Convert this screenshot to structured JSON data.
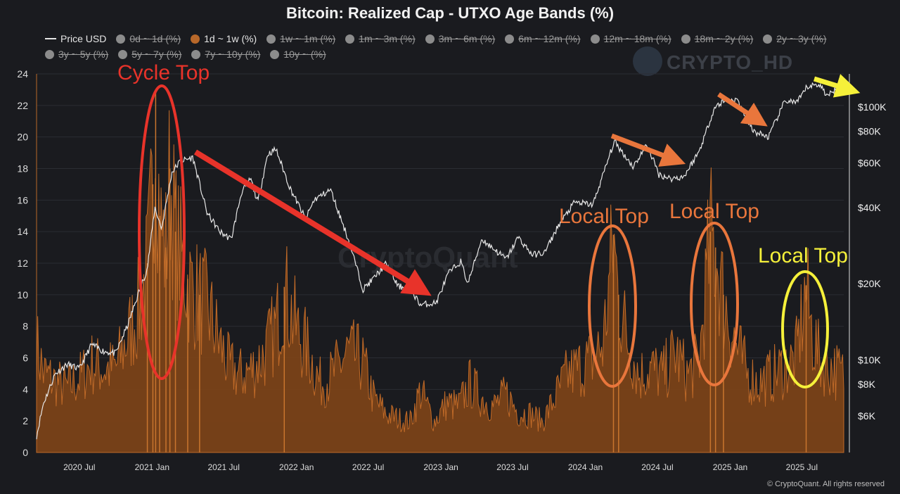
{
  "title": "Bitcoin: Realized Cap - UTXO Age Bands (%)",
  "watermark": "CRYPTO_HD",
  "background_watermark": "CryptoQuant",
  "credit": "© CryptoQuant. All rights reserved",
  "legend": [
    {
      "label": "Price USD",
      "kind": "line",
      "active": true,
      "color": "#e6e6e6"
    },
    {
      "label": "0d ~ 1d (%)",
      "kind": "dot",
      "active": false,
      "color": "#8c8c8c"
    },
    {
      "label": "1d ~ 1w (%)",
      "kind": "dot",
      "active": true,
      "color": "#b8682a"
    },
    {
      "label": "1w ~ 1m (%)",
      "kind": "dot",
      "active": false,
      "color": "#8c8c8c"
    },
    {
      "label": "1m ~ 3m (%)",
      "kind": "dot",
      "active": false,
      "color": "#8c8c8c"
    },
    {
      "label": "3m ~ 6m (%)",
      "kind": "dot",
      "active": false,
      "color": "#8c8c8c"
    },
    {
      "label": "6m ~ 12m (%)",
      "kind": "dot",
      "active": false,
      "color": "#8c8c8c"
    },
    {
      "label": "12m ~ 18m (%)",
      "kind": "dot",
      "active": false,
      "color": "#8c8c8c"
    },
    {
      "label": "18m ~ 2y (%)",
      "kind": "dot",
      "active": false,
      "color": "#8c8c8c"
    },
    {
      "label": "2y ~ 3y (%)",
      "kind": "dot",
      "active": false,
      "color": "#8c8c8c"
    },
    {
      "label": "3y ~ 5y (%)",
      "kind": "dot",
      "active": false,
      "color": "#8c8c8c"
    },
    {
      "label": "5y ~ 7y (%)",
      "kind": "dot",
      "active": false,
      "color": "#8c8c8c"
    },
    {
      "label": "7y ~ 10y (%)",
      "kind": "dot",
      "active": false,
      "color": "#8c8c8c"
    },
    {
      "label": "10y ~ (%)",
      "kind": "dot",
      "active": false,
      "color": "#8c8c8c"
    }
  ],
  "chart_data": {
    "type": "area",
    "x_range": [
      "2020-03-15",
      "2025-10-15"
    ],
    "x_ticks": [
      {
        "label": "2020 Jul",
        "date": "2020-07-01"
      },
      {
        "label": "2021 Jan",
        "date": "2021-01-01"
      },
      {
        "label": "2021 Jul",
        "date": "2021-07-01"
      },
      {
        "label": "2022 Jan",
        "date": "2022-01-01"
      },
      {
        "label": "2022 Jul",
        "date": "2022-07-01"
      },
      {
        "label": "2023 Jan",
        "date": "2023-01-01"
      },
      {
        "label": "2023 Jul",
        "date": "2023-07-01"
      },
      {
        "label": "2024 Jan",
        "date": "2024-01-01"
      },
      {
        "label": "2024 Jul",
        "date": "2024-07-01"
      },
      {
        "label": "2025 Jan",
        "date": "2025-01-01"
      },
      {
        "label": "2025 Jul",
        "date": "2025-07-01"
      }
    ],
    "y_left": {
      "range": [
        0,
        24
      ],
      "ticks": [
        0,
        2,
        4,
        6,
        8,
        10,
        12,
        14,
        16,
        18,
        20,
        22,
        24
      ]
    },
    "y_right": {
      "scale": "log",
      "range": [
        4300,
        135000
      ],
      "ticks": [
        {
          "label": "$6K",
          "value": 6000
        },
        {
          "label": "$8K",
          "value": 8000
        },
        {
          "label": "$10K",
          "value": 10000
        },
        {
          "label": "$20K",
          "value": 20000
        },
        {
          "label": "$40K",
          "value": 40000
        },
        {
          "label": "$60K",
          "value": 60000
        },
        {
          "label": "$80K",
          "value": 80000
        },
        {
          "label": "$100K",
          "value": 100000
        }
      ]
    },
    "grid": true,
    "series": [
      {
        "name": "1d ~ 1w (%)",
        "axis": "left",
        "color": "#b8682a",
        "points": [
          [
            "2020-03-15",
            7.0
          ],
          [
            "2020-04-01",
            5.2
          ],
          [
            "2020-05-01",
            4.6
          ],
          [
            "2020-06-01",
            4.2
          ],
          [
            "2020-07-01",
            4.8
          ],
          [
            "2020-08-01",
            5.8
          ],
          [
            "2020-09-01",
            5.4
          ],
          [
            "2020-10-01",
            5.5
          ],
          [
            "2020-11-01",
            7.5
          ],
          [
            "2020-12-01",
            9.5
          ],
          [
            "2020-12-20",
            12.0
          ],
          [
            "2021-01-03",
            17.0
          ],
          [
            "2021-01-10",
            22.8
          ],
          [
            "2021-01-20",
            15.0
          ],
          [
            "2021-02-05",
            13.0
          ],
          [
            "2021-02-15",
            18.0
          ],
          [
            "2021-03-01",
            14.0
          ],
          [
            "2021-04-01",
            11.0
          ],
          [
            "2021-05-01",
            10.0
          ],
          [
            "2021-05-20",
            9.5
          ],
          [
            "2021-06-15",
            7.5
          ],
          [
            "2021-07-15",
            5.5
          ],
          [
            "2021-08-15",
            5.0
          ],
          [
            "2021-09-15",
            5.5
          ],
          [
            "2021-10-15",
            6.5
          ],
          [
            "2021-11-15",
            8.5
          ],
          [
            "2021-12-01",
            10.5
          ],
          [
            "2022-01-01",
            8.0
          ],
          [
            "2022-02-01",
            6.5
          ],
          [
            "2022-03-01",
            4.5
          ],
          [
            "2022-04-01",
            5.0
          ],
          [
            "2022-05-10",
            6.5
          ],
          [
            "2022-06-15",
            6.0
          ],
          [
            "2022-07-15",
            3.5
          ],
          [
            "2022-08-15",
            2.5
          ],
          [
            "2022-09-15",
            2.2
          ],
          [
            "2022-10-15",
            2.0
          ],
          [
            "2022-11-10",
            4.0
          ],
          [
            "2022-12-15",
            2.0
          ],
          [
            "2023-01-15",
            3.2
          ],
          [
            "2023-02-15",
            3.0
          ],
          [
            "2023-03-15",
            4.5
          ],
          [
            "2023-04-15",
            3.5
          ],
          [
            "2023-05-15",
            3.0
          ],
          [
            "2023-06-15",
            3.8
          ],
          [
            "2023-07-15",
            2.6
          ],
          [
            "2023-08-15",
            2.5
          ],
          [
            "2023-09-15",
            2.0
          ],
          [
            "2023-10-15",
            3.5
          ],
          [
            "2023-11-15",
            5.0
          ],
          [
            "2023-12-15",
            5.5
          ],
          [
            "2024-01-15",
            6.0
          ],
          [
            "2024-02-15",
            7.0
          ],
          [
            "2024-03-12",
            13.8
          ],
          [
            "2024-03-25",
            10.0
          ],
          [
            "2024-04-15",
            7.5
          ],
          [
            "2024-05-15",
            5.0
          ],
          [
            "2024-06-15",
            5.5
          ],
          [
            "2024-07-15",
            5.0
          ],
          [
            "2024-08-15",
            6.5
          ],
          [
            "2024-09-15",
            5.0
          ],
          [
            "2024-10-15",
            6.0
          ],
          [
            "2024-11-12",
            14.0
          ],
          [
            "2024-11-25",
            13.0
          ],
          [
            "2024-12-15",
            10.0
          ],
          [
            "2025-01-15",
            7.0
          ],
          [
            "2025-02-15",
            5.0
          ],
          [
            "2025-03-15",
            4.5
          ],
          [
            "2025-04-15",
            5.0
          ],
          [
            "2025-05-15",
            5.5
          ],
          [
            "2025-06-15",
            6.0
          ],
          [
            "2025-07-12",
            10.6
          ],
          [
            "2025-07-25",
            8.0
          ],
          [
            "2025-08-15",
            6.0
          ],
          [
            "2025-09-15",
            5.5
          ],
          [
            "2025-10-15",
            5.0
          ]
        ]
      },
      {
        "name": "Price USD",
        "axis": "right",
        "color": "#e6e6e6",
        "points": [
          [
            "2020-03-15",
            5000
          ],
          [
            "2020-04-01",
            6700
          ],
          [
            "2020-05-01",
            8800
          ],
          [
            "2020-06-01",
            9600
          ],
          [
            "2020-07-01",
            9200
          ],
          [
            "2020-08-01",
            11500
          ],
          [
            "2020-09-01",
            10800
          ],
          [
            "2020-10-01",
            10600
          ],
          [
            "2020-11-01",
            13800
          ],
          [
            "2020-12-01",
            19000
          ],
          [
            "2020-12-20",
            23000
          ],
          [
            "2021-01-08",
            40000
          ],
          [
            "2021-01-25",
            33000
          ],
          [
            "2021-02-20",
            55000
          ],
          [
            "2021-03-13",
            61000
          ],
          [
            "2021-04-14",
            63000
          ],
          [
            "2021-05-20",
            38000
          ],
          [
            "2021-06-22",
            32000
          ],
          [
            "2021-07-20",
            30000
          ],
          [
            "2021-08-15",
            46000
          ],
          [
            "2021-09-07",
            52000
          ],
          [
            "2021-09-25",
            42000
          ],
          [
            "2021-10-20",
            65000
          ],
          [
            "2021-11-10",
            68000
          ],
          [
            "2021-12-15",
            48000
          ],
          [
            "2022-01-24",
            36000
          ],
          [
            "2022-02-15",
            43000
          ],
          [
            "2022-03-28",
            47000
          ],
          [
            "2022-05-15",
            29000
          ],
          [
            "2022-06-18",
            19000
          ],
          [
            "2022-07-15",
            21000
          ],
          [
            "2022-08-15",
            24000
          ],
          [
            "2022-09-15",
            19500
          ],
          [
            "2022-10-15",
            19200
          ],
          [
            "2022-11-10",
            16500
          ],
          [
            "2022-12-20",
            16800
          ],
          [
            "2023-01-20",
            22000
          ],
          [
            "2023-02-20",
            24500
          ],
          [
            "2023-03-10",
            20000
          ],
          [
            "2023-04-14",
            30000
          ],
          [
            "2023-06-15",
            25000
          ],
          [
            "2023-07-15",
            30500
          ],
          [
            "2023-08-20",
            26000
          ],
          [
            "2023-09-20",
            26500
          ],
          [
            "2023-10-25",
            34000
          ],
          [
            "2023-12-05",
            42000
          ],
          [
            "2024-01-20",
            41000
          ],
          [
            "2024-03-14",
            73000
          ],
          [
            "2024-05-01",
            58000
          ],
          [
            "2024-06-05",
            71000
          ],
          [
            "2024-07-05",
            54000
          ],
          [
            "2024-08-05",
            52000
          ],
          [
            "2024-09-06",
            53000
          ],
          [
            "2024-10-15",
            67000
          ],
          [
            "2024-11-22",
            99000
          ],
          [
            "2024-12-17",
            106000
          ],
          [
            "2025-01-20",
            106000
          ],
          [
            "2025-02-28",
            80000
          ],
          [
            "2025-04-08",
            76000
          ],
          [
            "2025-05-20",
            106000
          ],
          [
            "2025-06-20",
            104000
          ],
          [
            "2025-07-14",
            120000
          ],
          [
            "2025-08-14",
            123000
          ],
          [
            "2025-09-05",
            110000
          ],
          [
            "2025-10-06",
            124000
          ]
        ]
      }
    ],
    "annotations": [
      {
        "text": "Cycle Top",
        "color": "#e8332a",
        "x": "2021-01-10",
        "y": 22.8
      },
      {
        "text": "Local Top",
        "color": "#e9763c",
        "x": "2024-03-12",
        "y": 13.8
      },
      {
        "text": "Local Top",
        "color": "#e9763c",
        "x": "2024-11-12",
        "y": 14.0
      },
      {
        "text": "Local Top",
        "color": "#f5f03a",
        "x": "2025-07-12",
        "y": 10.6
      }
    ]
  }
}
